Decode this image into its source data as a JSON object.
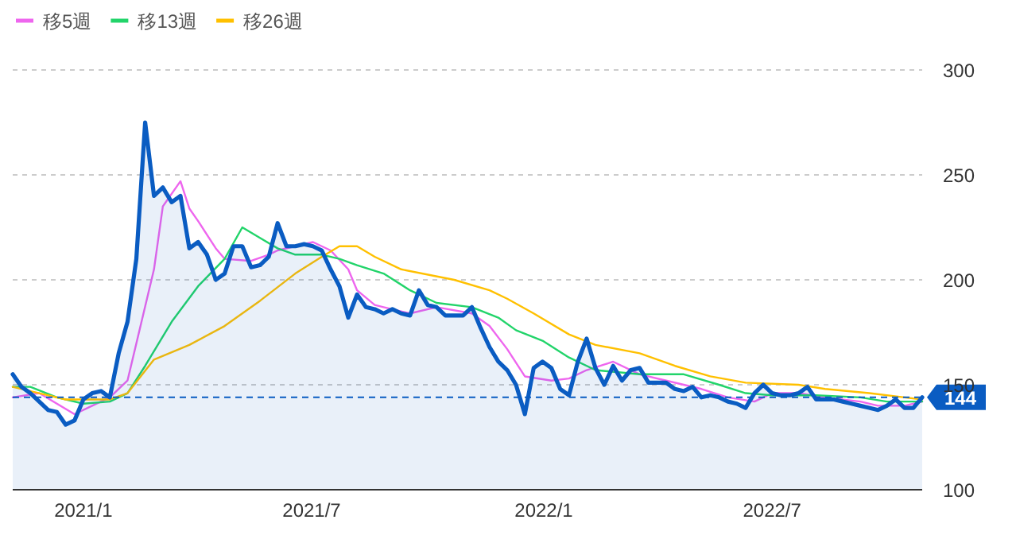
{
  "chart_data": {
    "type": "line",
    "x": [
      "2020-11-06",
      "2020-11-13",
      "2020-11-20",
      "2020-11-27",
      "2020-12-04",
      "2020-12-11",
      "2020-12-18",
      "2020-12-25",
      "2021-01-01",
      "2021-01-08",
      "2021-01-15",
      "2021-01-22",
      "2021-01-29",
      "2021-02-05",
      "2021-02-12",
      "2021-02-19",
      "2021-02-26",
      "2021-03-05",
      "2021-03-12",
      "2021-03-19",
      "2021-03-26",
      "2021-04-02",
      "2021-04-09",
      "2021-04-16",
      "2021-04-23",
      "2021-04-30",
      "2021-05-07",
      "2021-05-14",
      "2021-05-21",
      "2021-05-28",
      "2021-06-04",
      "2021-06-11",
      "2021-06-18",
      "2021-06-25",
      "2021-07-02",
      "2021-07-09",
      "2021-07-16",
      "2021-07-23",
      "2021-07-30",
      "2021-08-06",
      "2021-08-13",
      "2021-08-20",
      "2021-08-27",
      "2021-09-03",
      "2021-09-10",
      "2021-09-17",
      "2021-09-24",
      "2021-10-01",
      "2021-10-08",
      "2021-10-15",
      "2021-10-22",
      "2021-10-29",
      "2021-11-05",
      "2021-11-12",
      "2021-11-19",
      "2021-11-26",
      "2021-12-03",
      "2021-12-10",
      "2021-12-17",
      "2021-12-24",
      "2021-12-31",
      "2022-01-07",
      "2022-01-14",
      "2022-01-21",
      "2022-01-28",
      "2022-02-04",
      "2022-02-11",
      "2022-02-18",
      "2022-02-25",
      "2022-03-04",
      "2022-03-11",
      "2022-03-18",
      "2022-03-25",
      "2022-04-01",
      "2022-04-08",
      "2022-04-15",
      "2022-04-22",
      "2022-04-29",
      "2022-05-06",
      "2022-05-13",
      "2022-05-20",
      "2022-05-27",
      "2022-06-03",
      "2022-06-10",
      "2022-06-17",
      "2022-06-24",
      "2022-07-01",
      "2022-07-08",
      "2022-07-15",
      "2022-07-22",
      "2022-07-29",
      "2022-08-05",
      "2022-08-12",
      "2022-08-19",
      "2022-08-26",
      "2022-09-02",
      "2022-09-09",
      "2022-09-16",
      "2022-09-23",
      "2022-09-30",
      "2022-10-07",
      "2022-10-14",
      "2022-10-21",
      "2022-10-28"
    ],
    "series": [
      {
        "name": "移5週",
        "color": "#ee66ee",
        "x": [
          "2020-11-06",
          "2020-11-27",
          "2020-12-25",
          "2021-01-08",
          "2021-01-22",
          "2021-02-05",
          "2021-02-26",
          "2021-03-05",
          "2021-03-19",
          "2021-03-26",
          "2021-04-02",
          "2021-04-16",
          "2021-04-23",
          "2021-05-14",
          "2021-05-28",
          "2021-06-04",
          "2021-07-02",
          "2021-07-16",
          "2021-07-30",
          "2021-08-06",
          "2021-08-20",
          "2021-08-27",
          "2021-09-17",
          "2021-10-08",
          "2021-11-05",
          "2021-11-19",
          "2021-12-03",
          "2021-12-17",
          "2022-01-07",
          "2022-01-21",
          "2022-02-04",
          "2022-02-25",
          "2022-03-18",
          "2022-04-08",
          "2022-05-06",
          "2022-05-27",
          "2022-06-17",
          "2022-07-01",
          "2022-07-22",
          "2022-08-12",
          "2022-09-09",
          "2022-09-23",
          "2022-10-14",
          "2022-10-28"
        ],
        "values": [
          144,
          146,
          136,
          140,
          144,
          152,
          205,
          235,
          247,
          234,
          228,
          215,
          210,
          209,
          212,
          214,
          218,
          214,
          205,
          195,
          188,
          187,
          184,
          187,
          184,
          178,
          167,
          154,
          152,
          153,
          157,
          161,
          155,
          152,
          148,
          144,
          142,
          146,
          146,
          144,
          142,
          140,
          140,
          142
        ]
      },
      {
        "name": "移13週",
        "color": "#22d46a",
        "x": [
          "2020-11-06",
          "2020-11-20",
          "2020-12-11",
          "2021-01-01",
          "2021-01-22",
          "2021-02-05",
          "2021-02-19",
          "2021-03-12",
          "2021-04-02",
          "2021-04-23",
          "2021-05-07",
          "2021-05-21",
          "2021-06-04",
          "2021-06-18",
          "2021-07-09",
          "2021-07-23",
          "2021-08-06",
          "2021-08-27",
          "2021-09-17",
          "2021-10-08",
          "2021-11-05",
          "2021-11-26",
          "2021-12-10",
          "2021-12-31",
          "2022-01-21",
          "2022-02-11",
          "2022-03-18",
          "2022-04-22",
          "2022-05-20",
          "2022-06-10",
          "2022-07-01",
          "2022-08-05",
          "2022-09-09",
          "2022-09-30",
          "2022-10-28"
        ],
        "values": [
          149,
          149,
          144,
          141,
          142,
          146,
          159,
          180,
          197,
          210,
          225,
          220,
          215,
          212,
          212,
          210,
          207,
          203,
          195,
          189,
          187,
          182,
          176,
          171,
          163,
          157,
          155,
          155,
          150,
          146,
          145,
          145,
          144,
          142,
          142
        ]
      },
      {
        "name": "移26週",
        "color": "#ffc000",
        "x": [
          "2020-11-06",
          "2020-11-27",
          "2020-12-18",
          "2021-01-22",
          "2021-02-05",
          "2021-02-26",
          "2021-03-26",
          "2021-04-23",
          "2021-05-21",
          "2021-06-18",
          "2021-07-09",
          "2021-07-23",
          "2021-08-06",
          "2021-08-20",
          "2021-09-10",
          "2021-10-22",
          "2021-11-19",
          "2021-12-03",
          "2021-12-24",
          "2022-01-21",
          "2022-02-11",
          "2022-03-18",
          "2022-04-15",
          "2022-05-13",
          "2022-06-10",
          "2022-07-22",
          "2022-08-12",
          "2022-09-16",
          "2022-10-14",
          "2022-10-28"
        ],
        "values": [
          149,
          146,
          143,
          143,
          146,
          162,
          169,
          178,
          190,
          203,
          211,
          216,
          216,
          211,
          205,
          200,
          195,
          191,
          184,
          174,
          169,
          165,
          159,
          154,
          151,
          150,
          148,
          146,
          144,
          143
        ]
      },
      {
        "type": "area",
        "color": "#0a5cc2",
        "values": [
          155,
          149,
          146,
          142,
          138,
          137,
          131,
          133,
          143,
          146,
          147,
          144,
          165,
          180,
          210,
          275,
          240,
          244,
          237,
          240,
          215,
          218,
          212,
          200,
          203,
          216,
          216,
          206,
          207,
          211,
          227,
          216,
          216,
          217,
          216,
          214,
          205,
          197,
          182,
          193,
          187,
          186,
          184,
          186,
          184,
          183,
          195,
          188,
          187,
          183,
          183,
          183,
          187,
          177,
          168,
          161,
          157,
          150,
          136,
          158,
          161,
          158,
          148,
          145,
          161,
          172,
          158,
          150,
          159,
          152,
          157,
          158,
          151,
          151,
          151,
          148,
          147,
          149,
          144,
          145,
          144,
          142,
          141,
          139,
          146,
          150,
          146,
          145,
          145,
          146,
          149,
          143,
          143,
          143,
          142,
          141,
          140,
          139,
          138,
          140,
          143,
          139,
          139,
          144
        ]
      }
    ],
    "xlim": [
      "2020-11-06",
      "2022-10-28"
    ],
    "xticks": [
      {
        "value": "2021-01-01",
        "label": "2021/1"
      },
      {
        "value": "2021-07-01",
        "label": "2021/7"
      },
      {
        "value": "2022-01-01",
        "label": "2022/1"
      },
      {
        "value": "2022-07-01",
        "label": "2022/7"
      }
    ],
    "ylim": [
      100,
      300
    ],
    "yticks": [
      100,
      150,
      200,
      250,
      300
    ],
    "ref_lines": [
      {
        "axis": "y",
        "value": 144,
        "label": "144",
        "color": "#0a5cc2",
        "line_style": "dashed"
      }
    ],
    "grid": "y",
    "legend": "top left"
  }
}
